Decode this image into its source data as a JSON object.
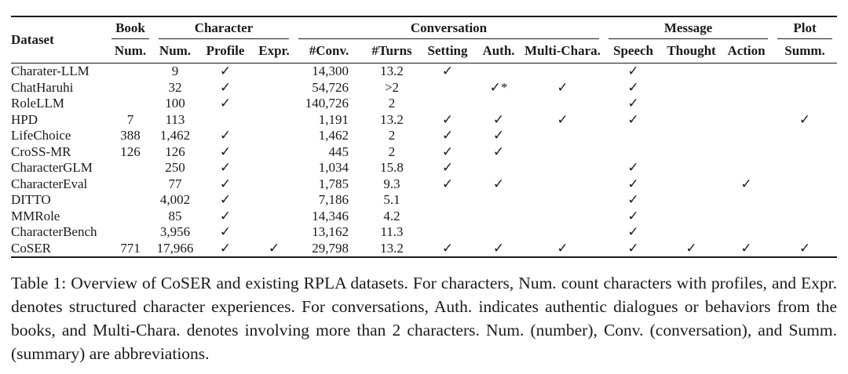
{
  "table": {
    "corner_header": "Dataset",
    "groups": [
      {
        "label": "Book"
      },
      {
        "label": "Character"
      },
      {
        "label": "Conversation"
      },
      {
        "label": "Message"
      },
      {
        "label": "Plot"
      }
    ],
    "sub_headers": [
      "Num.",
      "Num.",
      "Profile",
      "Expr.",
      "#Conv.",
      "#Turns",
      "Setting",
      "Auth.",
      "Multi-Chara.",
      "Speech",
      "Thought",
      "Action",
      "Summ."
    ],
    "check_mark": "✓",
    "rows": [
      {
        "name": "Charater-LLM",
        "cells": [
          "",
          "9",
          "✓",
          "",
          "14,300",
          "13.2",
          "✓",
          "",
          "",
          "✓",
          "",
          "",
          ""
        ]
      },
      {
        "name": "ChatHaruhi",
        "cells": [
          "",
          "32",
          "✓",
          "",
          "54,726",
          ">2",
          "",
          "✓*",
          "✓",
          "✓",
          "",
          "",
          ""
        ]
      },
      {
        "name": "RoleLLM",
        "cells": [
          "",
          "100",
          "✓",
          "",
          "140,726",
          "2",
          "",
          "",
          "",
          "✓",
          "",
          "",
          ""
        ]
      },
      {
        "name": "HPD",
        "cells": [
          "7",
          "113",
          "",
          "",
          "1,191",
          "13.2",
          "✓",
          "✓",
          "✓",
          "✓",
          "",
          "",
          "✓"
        ]
      },
      {
        "name": "LifeChoice",
        "cells": [
          "388",
          "1,462",
          "✓",
          "",
          "1,462",
          "2",
          "✓",
          "✓",
          "",
          "",
          "",
          "",
          ""
        ]
      },
      {
        "name": "CroSS-MR",
        "cells": [
          "126",
          "126",
          "✓",
          "",
          "445",
          "2",
          "✓",
          "✓",
          "",
          "",
          "",
          "",
          ""
        ]
      },
      {
        "name": "CharacterGLM",
        "cells": [
          "",
          "250",
          "✓",
          "",
          "1,034",
          "15.8",
          "✓",
          "",
          "",
          "✓",
          "",
          "",
          ""
        ]
      },
      {
        "name": "CharacterEval",
        "cells": [
          "",
          "77",
          "✓",
          "",
          "1,785",
          "9.3",
          "✓",
          "✓",
          "",
          "✓",
          "",
          "✓",
          ""
        ]
      },
      {
        "name": "DITTO",
        "cells": [
          "",
          "4,002",
          "✓",
          "",
          "7,186",
          "5.1",
          "",
          "",
          "",
          "✓",
          "",
          "",
          ""
        ]
      },
      {
        "name": "MMRole",
        "cells": [
          "",
          "85",
          "✓",
          "",
          "14,346",
          "4.2",
          "",
          "",
          "",
          "✓",
          "",
          "",
          ""
        ]
      },
      {
        "name": "CharacterBench",
        "cells": [
          "",
          "3,956",
          "✓",
          "",
          "13,162",
          "11.3",
          "",
          "",
          "",
          "✓",
          "",
          "",
          ""
        ]
      },
      {
        "name": "CoSER",
        "cells": [
          "771",
          "17,966",
          "✓",
          "✓",
          "29,798",
          "13.2",
          "✓",
          "✓",
          "✓",
          "✓",
          "✓",
          "✓",
          "✓"
        ]
      }
    ]
  },
  "caption": "Table 1: Overview of CoSER and existing RPLA datasets. For characters, Num. count characters with profiles, and Expr. denotes structured character experiences. For conversations, Auth. indicates authentic dialogues or behaviors from the books, and Multi-Chara. denotes involving more than 2 characters. Num. (number), Conv. (conversation), and Summ. (summary) are abbreviations."
}
